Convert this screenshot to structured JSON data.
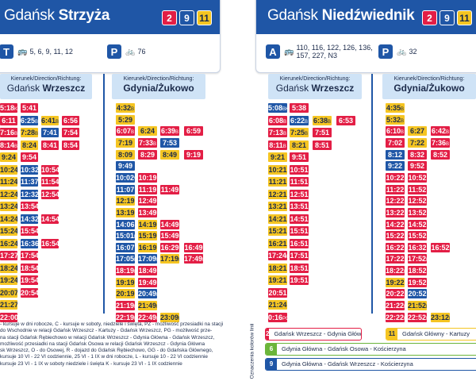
{
  "colors": {
    "line2": "#e31e45",
    "line9": "#1f56a6",
    "line11": "#f5c522",
    "line6": "#6bb53a",
    "header": "#1f56a6"
  },
  "stops": [
    {
      "name_light": "Gdańsk ",
      "name_bold": "Strzyża",
      "badges": [
        "2",
        "9",
        "11"
      ],
      "info_left_icon": "T",
      "info_left_text": "5, 6, 9, 11, 12",
      "info_right_icon": "P",
      "info_right_text": "76"
    },
    {
      "name_light": "Gdańsk ",
      "name_bold": "Niedźwiednik",
      "badges": [
        "2",
        "9",
        "11"
      ],
      "info_left_icon": "A",
      "info_left_text": "110, 116, 122, 126, 136, 157, 227, N3",
      "info_right_icon": "P",
      "info_right_text": "32"
    }
  ],
  "direction_label": "Kierunek/Direction/Richtung:",
  "columns": [
    {
      "dest_light": "Gdańsk ",
      "dest_bold": "Wrzeszcz"
    },
    {
      "dest_light": "",
      "dest_bold": "Gdynia/Żukowo"
    },
    {
      "dest_light": "Gdańsk ",
      "dest_bold": "Wrzeszcz"
    },
    {
      "dest_light": "",
      "dest_bold": "Gdynia/Żukowo"
    }
  ],
  "timetables": [
    {
      "rows": [
        [
          [
            "2",
            "5:18",
            "K"
          ],
          [
            "2",
            "5:41",
            ""
          ]
        ],
        [
          [
            "2",
            "6:11",
            ""
          ],
          [
            "9",
            "6:25",
            "B"
          ],
          [
            "11",
            "6:41",
            "B"
          ],
          [
            "2",
            "6:56",
            ""
          ]
        ],
        [
          [
            "2",
            "7:16",
            "B"
          ],
          [
            "11",
            "7:28",
            "B"
          ],
          [
            "9",
            "7:41",
            ""
          ],
          [
            "2",
            "7:54",
            ""
          ]
        ],
        [
          [
            "2",
            "8:14",
            "B"
          ],
          [
            "11",
            "8:24",
            ""
          ],
          [
            "2",
            "8:41",
            ""
          ],
          [
            "2",
            "8:54",
            ""
          ]
        ],
        [
          [
            "11",
            "9:24",
            ""
          ],
          [
            "2",
            "9:54",
            ""
          ]
        ],
        [
          [
            "11",
            "10:24",
            ""
          ],
          [
            "9",
            "10:32",
            "W"
          ],
          [
            "2",
            "10:54",
            ""
          ]
        ],
        [
          [
            "11",
            "11:24",
            ""
          ],
          [
            "9",
            "11:37",
            "W"
          ],
          [
            "2",
            "11:54",
            ""
          ]
        ],
        [
          [
            "11",
            "12:24",
            ""
          ],
          [
            "9",
            "12:32",
            "W"
          ],
          [
            "2",
            "12:54",
            ""
          ]
        ],
        [
          [
            "11",
            "13:24",
            ""
          ],
          [
            "2",
            "13:54",
            ""
          ]
        ],
        [
          [
            "11",
            "14:24",
            ""
          ],
          [
            "9",
            "14:32",
            ""
          ],
          [
            "2",
            "14:54",
            ""
          ]
        ],
        [
          [
            "11",
            "15:24",
            ""
          ],
          [
            "2",
            "15:54",
            ""
          ]
        ],
        [
          [
            "11",
            "16:24",
            ""
          ],
          [
            "9",
            "16:36",
            ""
          ],
          [
            "2",
            "16:54",
            ""
          ]
        ],
        [
          [
            "2",
            "17:27",
            "B"
          ],
          [
            "2",
            "17:54",
            ""
          ]
        ],
        [
          [
            "11",
            "18:24",
            ""
          ],
          [
            "2",
            "18:54",
            ""
          ]
        ],
        [
          [
            "11",
            "19:24",
            ""
          ],
          [
            "2",
            "19:54",
            ""
          ]
        ],
        [
          [
            "11",
            "20:07",
            "PZ"
          ],
          [
            "2",
            "20:54",
            ""
          ]
        ],
        [
          [
            "11",
            "21:27",
            ""
          ]
        ],
        [
          [
            "2",
            "22:00",
            "PG"
          ]
        ]
      ]
    },
    {
      "rows": [
        [
          [
            "11",
            "4:32",
            "B"
          ]
        ],
        [
          [
            "11",
            "5:29",
            ""
          ]
        ],
        [
          [
            "2",
            "6:07",
            "B"
          ],
          [
            "11",
            "6:24",
            ""
          ],
          [
            "2",
            "6:39",
            "B"
          ],
          [
            "2",
            "6:59",
            ""
          ]
        ],
        [
          [
            "11",
            "7:19",
            ""
          ],
          [
            "2",
            "7:33",
            "B"
          ],
          [
            "9",
            "7:53",
            ""
          ]
        ],
        [
          [
            "11",
            "8:09",
            ""
          ],
          [
            "2",
            "8:29",
            ""
          ],
          [
            "11",
            "8:49",
            ""
          ],
          [
            "2",
            "9:19",
            ""
          ]
        ],
        [
          [
            "9",
            "9:49",
            ""
          ]
        ],
        [
          [
            "9",
            "10:02",
            "W"
          ],
          [
            "2",
            "10:19",
            ""
          ]
        ],
        [
          [
            "9",
            "11:07",
            ""
          ],
          [
            "2",
            "11:19",
            ""
          ],
          [
            "2",
            "11:49",
            ""
          ]
        ],
        [
          [
            "11",
            "12:19",
            ""
          ],
          [
            "2",
            "12:49",
            ""
          ]
        ],
        [
          [
            "11",
            "13:19",
            ""
          ],
          [
            "2",
            "13:49",
            ""
          ]
        ],
        [
          [
            "9",
            "14:06",
            ""
          ],
          [
            "11",
            "14:19",
            ""
          ],
          [
            "2",
            "14:49",
            ""
          ]
        ],
        [
          [
            "9",
            "15:01",
            "B"
          ],
          [
            "11",
            "15:19",
            ""
          ],
          [
            "2",
            "15:49",
            ""
          ]
        ],
        [
          [
            "9",
            "16:07",
            ""
          ],
          [
            "11",
            "16:19",
            ""
          ],
          [
            "2",
            "16:29",
            ""
          ],
          [
            "2",
            "16:49",
            ""
          ]
        ],
        [
          [
            "9",
            "17:05",
            "L"
          ],
          [
            "9",
            "17:09",
            "B"
          ],
          [
            "11",
            "17:19",
            "B"
          ],
          [
            "2",
            "17:49",
            "PG"
          ]
        ],
        [
          [
            "2",
            "18:19",
            "B"
          ],
          [
            "2",
            "18:49",
            ""
          ]
        ],
        [
          [
            "11",
            "19:19",
            ""
          ],
          [
            "2",
            "19:49",
            ""
          ]
        ],
        [
          [
            "11",
            "20:19",
            ""
          ],
          [
            "9",
            "20:49",
            "PZ"
          ]
        ],
        [
          [
            "2",
            "21:19",
            "B"
          ],
          [
            "11",
            "21:49",
            "PZ"
          ]
        ],
        [
          [
            "2",
            "22:19",
            "B"
          ],
          [
            "2",
            "22:49",
            "PG"
          ],
          [
            "11",
            "23:09",
            "B"
          ]
        ]
      ]
    },
    {
      "rows": [
        [
          [
            "9",
            "5:08",
            "BK"
          ],
          [
            "2",
            "5:38",
            ""
          ]
        ],
        [
          [
            "2",
            "6:08",
            "B"
          ],
          [
            "9",
            "6:22",
            "B"
          ],
          [
            "11",
            "6:38",
            "B"
          ],
          [
            "2",
            "6:53",
            ""
          ]
        ],
        [
          [
            "2",
            "7:13",
            "B"
          ],
          [
            "11",
            "7:25",
            "B"
          ],
          [
            "2",
            "7:51",
            ""
          ]
        ],
        [
          [
            "2",
            "8:11",
            "B"
          ],
          [
            "11",
            "8:21",
            ""
          ],
          [
            "2",
            "8:51",
            ""
          ]
        ],
        [
          [
            "11",
            "9:21",
            ""
          ],
          [
            "2",
            "9:51",
            ""
          ]
        ],
        [
          [
            "11",
            "10:21",
            ""
          ],
          [
            "2",
            "10:51",
            ""
          ]
        ],
        [
          [
            "11",
            "11:21",
            ""
          ],
          [
            "2",
            "11:51",
            ""
          ]
        ],
        [
          [
            "11",
            "12:21",
            ""
          ],
          [
            "2",
            "12:51",
            ""
          ]
        ],
        [
          [
            "11",
            "13:21",
            ""
          ],
          [
            "2",
            "13:51",
            ""
          ]
        ],
        [
          [
            "11",
            "14:21",
            ""
          ],
          [
            "2",
            "14:51",
            ""
          ]
        ],
        [
          [
            "11",
            "15:21",
            ""
          ],
          [
            "2",
            "15:51",
            ""
          ]
        ],
        [
          [
            "11",
            "16:21",
            ""
          ],
          [
            "2",
            "16:51",
            ""
          ]
        ],
        [
          [
            "2",
            "17:24",
            "B"
          ],
          [
            "2",
            "17:51",
            ""
          ]
        ],
        [
          [
            "11",
            "18:21",
            ""
          ],
          [
            "2",
            "18:51",
            ""
          ]
        ],
        [
          [
            "11",
            "19:21",
            ""
          ],
          [
            "2",
            "19:51",
            ""
          ]
        ],
        [
          [
            "2",
            "20:51",
            ""
          ]
        ],
        [
          [
            "11",
            "21:24",
            ""
          ]
        ],
        [
          [
            "2",
            "0:16",
            "PG"
          ]
        ]
      ]
    },
    {
      "rows": [
        [
          [
            "11",
            "4:35",
            "B"
          ]
        ],
        [
          [
            "11",
            "5:32",
            "B"
          ]
        ],
        [
          [
            "2",
            "6:10",
            "B"
          ],
          [
            "11",
            "6:27",
            ""
          ],
          [
            "2",
            "6:42",
            "B"
          ]
        ],
        [
          [
            "2",
            "7:02",
            ""
          ],
          [
            "11",
            "7:22",
            ""
          ],
          [
            "2",
            "7:36",
            "B"
          ]
        ],
        [
          [
            "9",
            "8:12",
            ""
          ],
          [
            "2",
            "8:32",
            ""
          ],
          [
            "2",
            "8:52",
            ""
          ]
        ],
        [
          [
            "9",
            "9:22",
            ""
          ],
          [
            "2",
            "9:52",
            ""
          ]
        ],
        [
          [
            "2",
            "10:22",
            ""
          ],
          [
            "2",
            "10:52",
            ""
          ]
        ],
        [
          [
            "2",
            "11:22",
            ""
          ],
          [
            "2",
            "11:52",
            ""
          ]
        ],
        [
          [
            "2",
            "12:22",
            ""
          ],
          [
            "2",
            "12:52",
            ""
          ]
        ],
        [
          [
            "2",
            "13:22",
            ""
          ],
          [
            "2",
            "13:52",
            ""
          ]
        ],
        [
          [
            "2",
            "14:22",
            ""
          ],
          [
            "2",
            "14:52",
            ""
          ]
        ],
        [
          [
            "2",
            "15:22",
            ""
          ],
          [
            "2",
            "15:52",
            ""
          ]
        ],
        [
          [
            "2",
            "16:22",
            ""
          ],
          [
            "2",
            "16:32",
            ""
          ],
          [
            "2",
            "16:52",
            ""
          ]
        ],
        [
          [
            "2",
            "17:22",
            ""
          ],
          [
            "2",
            "17:52",
            "PG"
          ]
        ],
        [
          [
            "2",
            "18:22",
            "B"
          ],
          [
            "2",
            "18:52",
            ""
          ]
        ],
        [
          [
            "11",
            "19:22",
            ""
          ],
          [
            "2",
            "19:52",
            ""
          ]
        ],
        [
          [
            "2",
            "20:22",
            ""
          ],
          [
            "9",
            "20:52",
            ""
          ]
        ],
        [
          [
            "2",
            "21:22",
            "B"
          ],
          [
            "11",
            "21:52",
            "PZ"
          ]
        ],
        [
          [
            "2",
            "22:22",
            "B"
          ],
          [
            "2",
            "22:52",
            "PG"
          ],
          [
            "11",
            "23:12",
            "B"
          ]
        ]
      ]
    }
  ],
  "footnotes": [
    "- kursuje w dni robocze, C - kursuje w soboty, niedziele i święta, PZ - możliwość przesiadki na stacji",
    "do Wschodnie w relacji Gdańsk Wrzeszcz - Kartuzy - Gdańsk Wrzeszcz, PG - możliwość prze-",
    "na stacji Gdańsk Rębiechowo w relacji Gdańsk Wrzeszcz - Gdynia Główna - Gdańsk Wrzeszcz,",
    "możliwość przesiadki na stacji Gdańsk Osowa w relacji Gdańsk Wrzeszcz - Gdynia Główna",
    "sk Wrzeszcz, O - do Osowej, R - dojazd do Gdańsk Rębiechowo, GG - do Gdańska Głównego,",
    "kursuje 10 VI - 22 VI codziennie, 25 VI - 1 IX w dni robocze, L - kursuje 10 - 22 VI codziennie",
    "kursuje 23 VI - 1 IX w soboty niedziele i święta K - kursuje 23 VI - 1 IX codziennie"
  ],
  "legend_title": "Oznaczenia kolorów linii",
  "legend": [
    {
      "line": "2",
      "text": "Gdańsk Wrzeszcz - Gdynia Główna"
    },
    {
      "line": "11",
      "text": "Gdańsk Główny - Kartuzy"
    },
    {
      "line": "6",
      "text": "Gdynia Główna - Gdańsk Osowa - Kościerzyna"
    },
    {
      "line": "9",
      "text": "Gdynia Główna - Gdańsk Wrzeszcz - Kościerzyna"
    }
  ]
}
